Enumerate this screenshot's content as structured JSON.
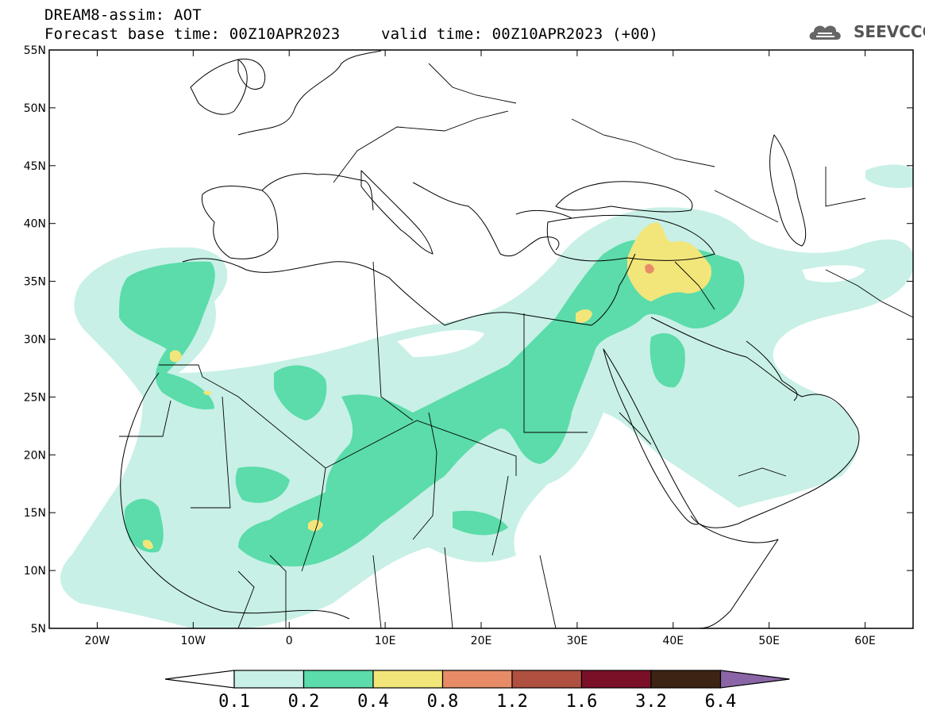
{
  "header": {
    "line1": "DREAM8-assim: AOT",
    "base_time": "Forecast base time: 00Z10APR2023",
    "valid_time": "valid time: 00Z10APR2023 (+00)"
  },
  "logo": {
    "text": "SEEVCCC",
    "icon": "cloud-icon"
  },
  "map": {
    "lon_range": [
      -25,
      65
    ],
    "lat_range": [
      5,
      55
    ],
    "lon_ticks": [
      {
        "v": -20,
        "label": "20W"
      },
      {
        "v": -10,
        "label": "10W"
      },
      {
        "v": 0,
        "label": "0"
      },
      {
        "v": 10,
        "label": "10E"
      },
      {
        "v": 20,
        "label": "20E"
      },
      {
        "v": 30,
        "label": "30E"
      },
      {
        "v": 40,
        "label": "40E"
      },
      {
        "v": 50,
        "label": "50E"
      },
      {
        "v": 60,
        "label": "60E"
      }
    ],
    "lat_ticks": [
      {
        "v": 55,
        "label": "55N"
      },
      {
        "v": 50,
        "label": "50N"
      },
      {
        "v": 45,
        "label": "45N"
      },
      {
        "v": 40,
        "label": "40N"
      },
      {
        "v": 35,
        "label": "35N"
      },
      {
        "v": 30,
        "label": "30N"
      },
      {
        "v": 25,
        "label": "25N"
      },
      {
        "v": 20,
        "label": "20N"
      },
      {
        "v": 15,
        "label": "15N"
      },
      {
        "v": 10,
        "label": "10N"
      },
      {
        "v": 5,
        "label": "5N"
      }
    ]
  },
  "colorbar": {
    "colors": [
      "#c8f0e6",
      "#5bdcaa",
      "#f2e67a",
      "#e88c68",
      "#b05040",
      "#7a1028",
      "#3c2414",
      "#8a66a6"
    ],
    "labels": [
      "0.1",
      "0.2",
      "0.4",
      "0.8",
      "1.2",
      "1.6",
      "3.2",
      "6.4"
    ]
  }
}
